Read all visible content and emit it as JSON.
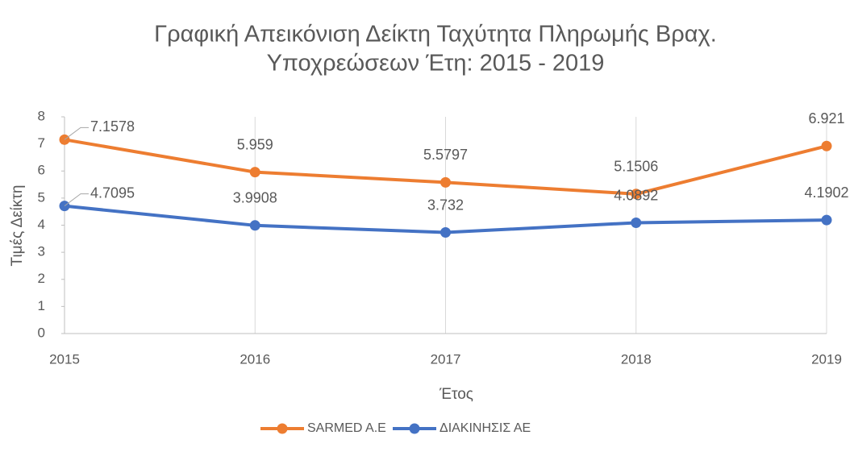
{
  "chart_data": {
    "type": "line",
    "title": [
      "Γραφική Απεικόνιση Δείκτη Ταχύτητα Πληρωμής Βραχ.",
      "Υποχρεώσεων Έτη: 2015 - 2019"
    ],
    "x_label": "Έτος",
    "y_label": "Τιμές  Δείκτη",
    "categories": [
      "2015",
      "2016",
      "2017",
      "2018",
      "2019"
    ],
    "series": [
      {
        "name": "SARMED A.E",
        "color": "#ED7D31",
        "values": [
          7.1578,
          5.959,
          5.5797,
          5.1506,
          6.921
        ]
      },
      {
        "name": "ΔΙΑΚΙΝΗΣΙΣ ΑΕ",
        "color": "#4472C4",
        "values": [
          4.7095,
          3.9908,
          3.732,
          4.0892,
          4.1902
        ]
      }
    ],
    "ylim": [
      0,
      8
    ],
    "yticks": [
      0,
      1,
      2,
      3,
      4,
      5,
      6,
      7,
      8
    ],
    "legend": "bottom"
  }
}
